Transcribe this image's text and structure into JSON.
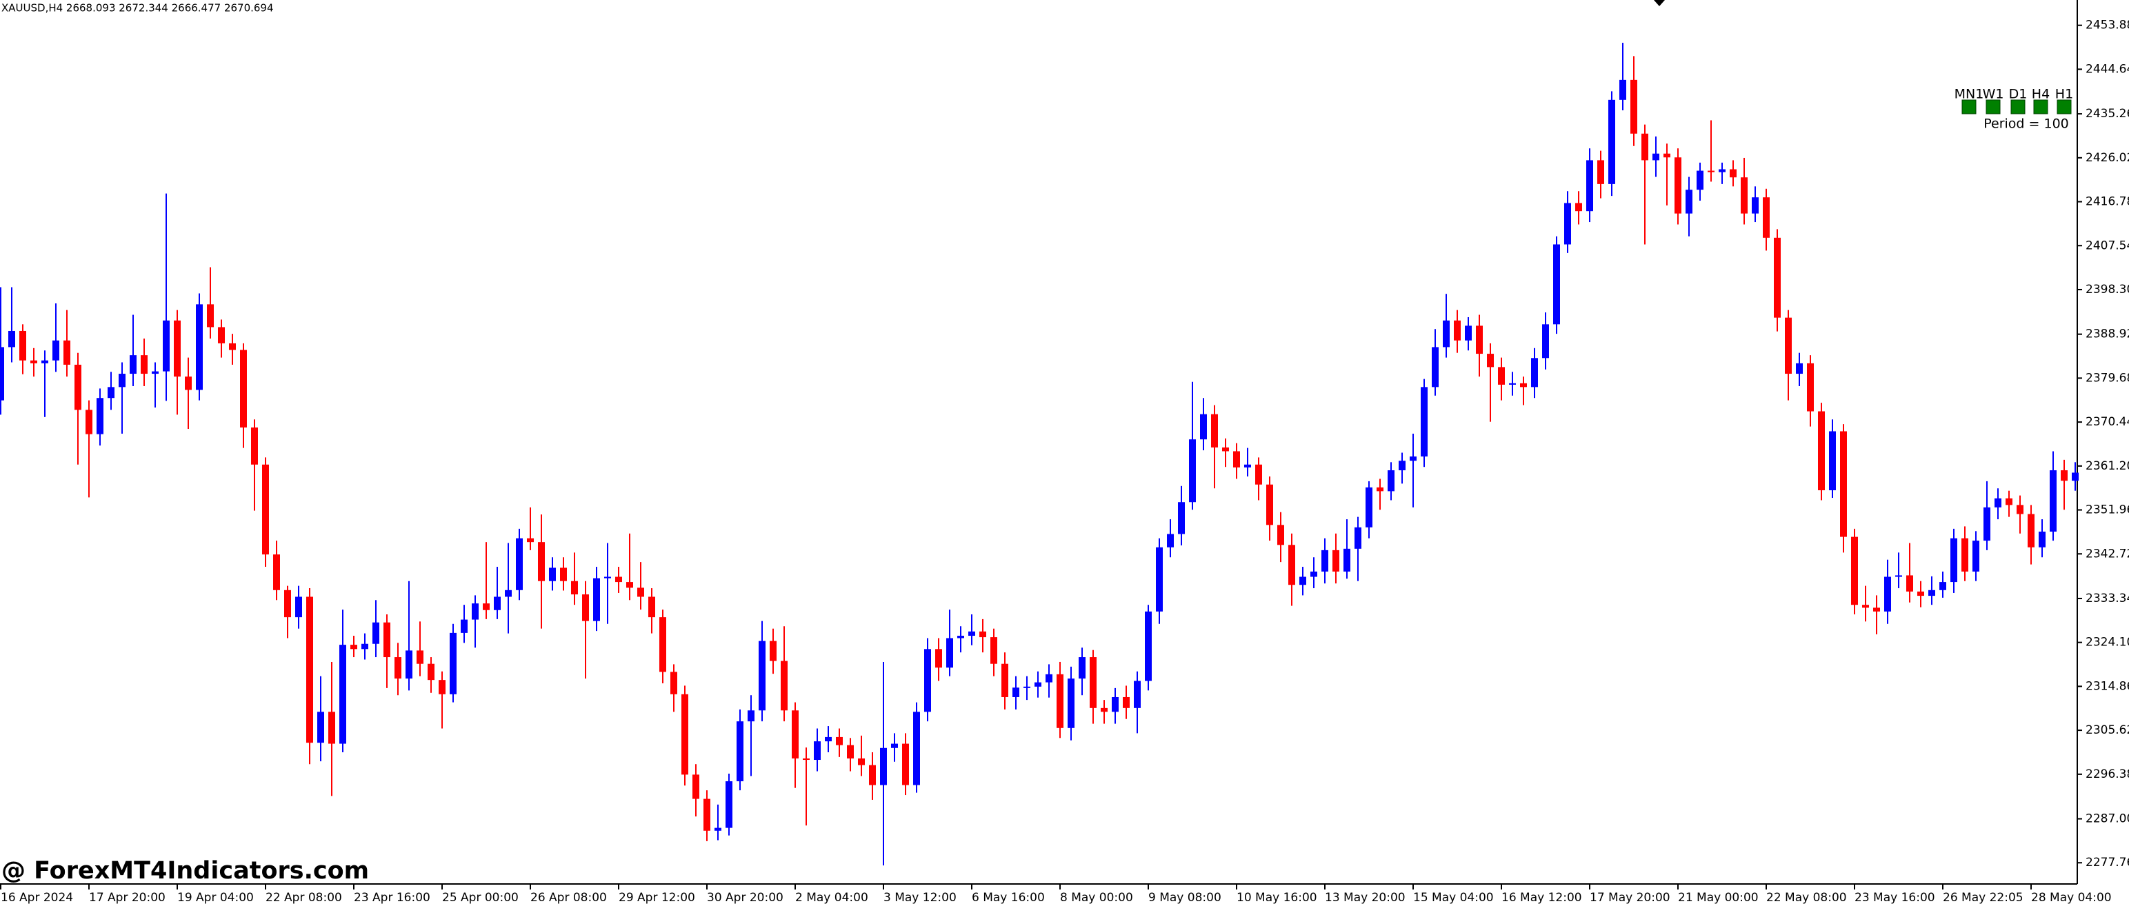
{
  "chart_data": {
    "type": "candlestick",
    "header": "XAUUSD,H4  2668.093 2672.344 2666.477 2670.694",
    "categories": [
      "16 Apr 2024",
      null,
      null,
      null,
      null,
      null,
      null,
      null,
      "17 Apr 20:00",
      null,
      null,
      null,
      null,
      null,
      null,
      null,
      "19 Apr 04:00",
      null,
      null,
      null,
      null,
      null,
      null,
      null,
      "22 Apr 08:00",
      null,
      null,
      null,
      null,
      null,
      null,
      null,
      "23 Apr 16:00",
      null,
      null,
      null,
      null,
      null,
      null,
      null,
      "25 Apr 00:00",
      null,
      null,
      null,
      null,
      null,
      null,
      null,
      "26 Apr 08:00",
      null,
      null,
      null,
      null,
      null,
      null,
      null,
      "29 Apr 12:00",
      null,
      null,
      null,
      null,
      null,
      null,
      null,
      "30 Apr 20:00",
      null,
      null,
      null,
      null,
      null,
      null,
      null,
      "2 May 04:00",
      null,
      null,
      null,
      null,
      null,
      null,
      null,
      "3 May 12:00",
      null,
      null,
      null,
      null,
      null,
      null,
      null,
      "6 May 16:00",
      null,
      null,
      null,
      null,
      null,
      null,
      null,
      "8 May 00:00",
      null,
      null,
      null,
      null,
      null,
      null,
      null,
      "9 May 08:00",
      null,
      null,
      null,
      null,
      null,
      null,
      null,
      "10 May 16:00",
      null,
      null,
      null,
      null,
      null,
      null,
      null,
      "13 May 20:00",
      null,
      null,
      null,
      null,
      null,
      null,
      null,
      "15 May 04:00",
      null,
      null,
      null,
      null,
      null,
      null,
      null,
      "16 May 12:00",
      null,
      null,
      null,
      null,
      null,
      null,
      null,
      "17 May 20:00",
      null,
      null,
      null,
      null,
      null,
      null,
      null,
      "21 May 00:00",
      null,
      null,
      null,
      null,
      null,
      null,
      null,
      "22 May 08:00",
      null,
      null,
      null,
      null,
      null,
      null,
      null,
      "23 May 16:00",
      null,
      null,
      null,
      null,
      null,
      null,
      null,
      "26 May 22:05",
      null,
      null,
      null,
      null,
      null,
      null,
      null,
      "28 May 04:00",
      null,
      null,
      null,
      null
    ],
    "open": [
      2375.0,
      2386.2,
      2389.6,
      2383.4,
      2382.8,
      2383.4,
      2387.6,
      2382.5,
      2373.0,
      2367.9,
      2375.5,
      2377.8,
      2380.6,
      2384.5,
      2380.6,
      2381.1,
      2391.8,
      2380.0,
      2377.2,
      2395.2,
      2390.4,
      2387.0,
      2385.6,
      2369.3,
      2361.5,
      2342.6,
      2335.1,
      2329.4,
      2333.7,
      2303.0,
      2309.5,
      2302.8,
      2323.6,
      2322.7,
      2323.8,
      2328.3,
      2321.0,
      2316.5,
      2322.4,
      2319.6,
      2316.2,
      2313.2,
      2326.1,
      2328.9,
      2332.3,
      2330.9,
      2333.7,
      2335.1,
      2346.0,
      2345.2,
      2337.0,
      2339.8,
      2337.0,
      2334.2,
      2328.6,
      2337.6,
      2337.9,
      2336.8,
      2335.6,
      2333.7,
      2329.4,
      2317.9,
      2313.2,
      2296.3,
      2291.2,
      2284.5,
      2285.1,
      2294.9,
      2307.5,
      2309.8,
      2324.4,
      2320.2,
      2309.8,
      2299.7,
      2299.4,
      2303.3,
      2304.2,
      2302.5,
      2299.7,
      2298.3,
      2294.1,
      2301.9,
      2302.8,
      2294.1,
      2309.5,
      2322.7,
      2318.8,
      2325.0,
      2325.5,
      2326.4,
      2325.2,
      2319.6,
      2312.6,
      2314.6,
      2314.8,
      2315.7,
      2317.4,
      2306.1,
      2316.5,
      2321.0,
      2310.3,
      2309.5,
      2312.6,
      2310.3,
      2316.0,
      2330.6,
      2344.1,
      2346.9,
      2353.6,
      2366.8,
      2372.1,
      2365.1,
      2364.3,
      2360.9,
      2361.5,
      2357.3,
      2348.8,
      2344.6,
      2336.2,
      2337.9,
      2339.0,
      2343.5,
      2339.0,
      2343.8,
      2348.3,
      2356.7,
      2355.9,
      2360.3,
      2362.3,
      2363.2,
      2377.8,
      2386.2,
      2391.8,
      2387.6,
      2390.7,
      2384.8,
      2382.0,
      2378.3,
      2378.6,
      2377.8,
      2383.9,
      2391.0,
      2407.8,
      2416.5,
      2414.8,
      2425.5,
      2420.5,
      2438.2,
      2442.4,
      2431.1,
      2425.5,
      2426.9,
      2426.1,
      2414.3,
      2419.3,
      2423.3,
      2423.0,
      2423.6,
      2421.9,
      2414.3,
      2417.7,
      2409.2,
      2392.4,
      2380.6,
      2382.8,
      2372.7,
      2356.1,
      2368.5,
      2346.3,
      2332.0,
      2331.4,
      2330.6,
      2337.9,
      2338.2,
      2334.8,
      2333.9,
      2335.1,
      2336.8,
      2346.0,
      2339.0,
      2345.5,
      2352.5,
      2354.4,
      2353.0,
      2351.1,
      2344.1,
      2347.4,
      2360.3,
      2358.1
    ],
    "high": [
      2398.8,
      2398.8,
      2391.0,
      2386.0,
      2385.5,
      2395.4,
      2394.0,
      2385.0,
      2375.0,
      2377.5,
      2381.0,
      2383.0,
      2393.0,
      2388.0,
      2383.0,
      2418.5,
      2394.0,
      2384.0,
      2397.5,
      2403.0,
      2392.0,
      2389.0,
      2387.0,
      2371.0,
      2363.0,
      2345.5,
      2336.0,
      2336.0,
      2335.5,
      2317.0,
      2320.0,
      2331.0,
      2325.5,
      2326.0,
      2333.0,
      2330.0,
      2324.0,
      2337.0,
      2328.5,
      2321.0,
      2318.0,
      2328.0,
      2332.0,
      2334.0,
      2345.2,
      2340.0,
      2345.0,
      2348.0,
      2352.5,
      2351.0,
      2342.0,
      2342.0,
      2343.0,
      2337.0,
      2340.0,
      2345.0,
      2340.0,
      2347.0,
      2341.0,
      2335.5,
      2331.0,
      2319.5,
      2315.0,
      2298.5,
      2293.0,
      2290.0,
      2296.5,
      2310.0,
      2313.0,
      2328.6,
      2327.0,
      2327.5,
      2311.5,
      2302.0,
      2306.0,
      2306.5,
      2306.0,
      2304.0,
      2304.5,
      2301.0,
      2320.0,
      2305.0,
      2305.0,
      2311.5,
      2325.0,
      2325.0,
      2331.0,
      2327.5,
      2330.0,
      2329.0,
      2327.0,
      2322.0,
      2317.0,
      2317.0,
      2318.0,
      2319.5,
      2320.0,
      2319.0,
      2323.0,
      2322.5,
      2312.0,
      2314.5,
      2315.0,
      2318.0,
      2332.0,
      2346.0,
      2350.0,
      2357.0,
      2378.9,
      2375.5,
      2374.0,
      2367.0,
      2366.0,
      2365.0,
      2363.0,
      2359.0,
      2351.5,
      2347.0,
      2340.0,
      2342.0,
      2346.0,
      2347.0,
      2350.0,
      2350.5,
      2358.0,
      2358.5,
      2362.0,
      2364.0,
      2368.0,
      2379.5,
      2390.0,
      2397.4,
      2394.0,
      2392.5,
      2393.0,
      2387.0,
      2384.0,
      2381.0,
      2380.0,
      2386.0,
      2393.5,
      2409.5,
      2419.0,
      2419.0,
      2428.0,
      2427.5,
      2440.0,
      2450.2,
      2447.4,
      2433.0,
      2430.5,
      2429.0,
      2428.0,
      2422.0,
      2425.0,
      2433.9,
      2425.0,
      2425.5,
      2426.0,
      2420.0,
      2419.5,
      2411.0,
      2394.0,
      2385.0,
      2384.5,
      2374.5,
      2371.0,
      2370.0,
      2348.0,
      2336.0,
      2334.0,
      2341.5,
      2343.0,
      2345.0,
      2337.0,
      2338.0,
      2339.0,
      2348.0,
      2348.5,
      2347.5,
      2358.0,
      2356.5,
      2356.0,
      2355.0,
      2353.0,
      2350.0,
      2364.3,
      2362.5,
      2362.0
    ],
    "low": [
      2372.0,
      2383.0,
      2380.5,
      2380.0,
      2371.5,
      2381.0,
      2380.0,
      2361.5,
      2354.6,
      2365.5,
      2373.0,
      2368.0,
      2378.0,
      2378.0,
      2373.5,
      2374.9,
      2372.0,
      2369.0,
      2375.0,
      2388.0,
      2384.0,
      2382.5,
      2365.0,
      2351.8,
      2340.0,
      2333.0,
      2325.0,
      2327.0,
      2298.5,
      2299.1,
      2291.8,
      2301.0,
      2321.0,
      2320.5,
      2321.0,
      2314.5,
      2313.0,
      2314.0,
      2317.0,
      2313.5,
      2306.0,
      2311.5,
      2324.0,
      2323.0,
      2329.0,
      2329.0,
      2326.0,
      2333.0,
      2343.5,
      2327.0,
      2335.0,
      2335.0,
      2332.0,
      2316.5,
      2326.5,
      2328.0,
      2334.5,
      2333.0,
      2331.0,
      2326.0,
      2315.5,
      2309.5,
      2294.0,
      2287.5,
      2282.3,
      2282.5,
      2283.5,
      2293.0,
      2296.0,
      2307.5,
      2317.5,
      2307.5,
      2293.5,
      2285.6,
      2297.0,
      2301.0,
      2300.0,
      2297.0,
      2296.0,
      2291.0,
      2277.2,
      2299.0,
      2292.0,
      2292.5,
      2307.5,
      2316.0,
      2317.0,
      2322.0,
      2323.5,
      2322.0,
      2317.0,
      2310.0,
      2310.0,
      2312.0,
      2312.5,
      2312.5,
      2304.0,
      2303.5,
      2313.0,
      2307.0,
      2307.0,
      2307.0,
      2308.0,
      2305.0,
      2314.0,
      2328.0,
      2342.0,
      2344.5,
      2352.0,
      2364.5,
      2356.5,
      2361.0,
      2358.5,
      2359.0,
      2354.0,
      2345.5,
      2341.0,
      2331.8,
      2334.0,
      2335.5,
      2336.5,
      2336.5,
      2337.5,
      2337.0,
      2346.0,
      2352.0,
      2354.0,
      2357.5,
      2352.5,
      2361.0,
      2376.0,
      2384.0,
      2385.0,
      2385.5,
      2380.0,
      2370.5,
      2375.0,
      2376.0,
      2374.0,
      2375.5,
      2381.5,
      2389.0,
      2406.0,
      2412.0,
      2412.5,
      2417.5,
      2418.0,
      2436.0,
      2428.5,
      2407.8,
      2422.0,
      2416.0,
      2412.0,
      2409.5,
      2417.0,
      2421.0,
      2420.5,
      2420.0,
      2412.0,
      2412.5,
      2406.5,
      2389.5,
      2375.0,
      2378.0,
      2369.5,
      2354.0,
      2354.5,
      2343.0,
      2330.0,
      2328.5,
      2325.8,
      2328.0,
      2335.5,
      2332.5,
      2331.5,
      2332.0,
      2333.5,
      2334.5,
      2337.0,
      2337.0,
      2343.5,
      2350.0,
      2350.5,
      2347.0,
      2340.5,
      2342.0,
      2345.5,
      2352.0,
      2356.0
    ],
    "close": [
      2386.2,
      2389.6,
      2383.4,
      2382.8,
      2383.4,
      2387.6,
      2382.5,
      2373.0,
      2367.9,
      2375.5,
      2377.8,
      2380.6,
      2384.5,
      2380.6,
      2381.1,
      2391.8,
      2380.0,
      2377.2,
      2395.2,
      2390.4,
      2387.0,
      2385.6,
      2369.3,
      2361.5,
      2342.6,
      2335.1,
      2329.4,
      2333.7,
      2303.0,
      2309.5,
      2302.8,
      2323.6,
      2322.7,
      2323.8,
      2328.3,
      2321.0,
      2316.5,
      2322.4,
      2319.6,
      2316.2,
      2313.2,
      2326.1,
      2328.9,
      2332.3,
      2330.9,
      2333.7,
      2335.1,
      2346.0,
      2345.2,
      2337.0,
      2339.8,
      2337.0,
      2334.2,
      2328.6,
      2337.6,
      2337.9,
      2336.8,
      2335.6,
      2333.7,
      2329.4,
      2317.9,
      2313.2,
      2296.3,
      2291.2,
      2284.5,
      2285.1,
      2294.9,
      2307.5,
      2309.8,
      2324.4,
      2320.2,
      2309.8,
      2299.7,
      2299.4,
      2303.3,
      2304.2,
      2302.5,
      2299.7,
      2298.3,
      2294.1,
      2301.9,
      2302.8,
      2294.1,
      2309.5,
      2322.7,
      2318.8,
      2325.0,
      2325.5,
      2326.4,
      2325.2,
      2319.6,
      2312.6,
      2314.6,
      2314.8,
      2315.7,
      2317.4,
      2306.1,
      2316.5,
      2321.0,
      2310.3,
      2309.5,
      2312.6,
      2310.3,
      2316.0,
      2330.6,
      2344.1,
      2346.9,
      2353.6,
      2366.8,
      2372.1,
      2365.1,
      2364.3,
      2360.9,
      2361.5,
      2357.3,
      2348.8,
      2344.6,
      2336.2,
      2337.9,
      2339.0,
      2343.5,
      2339.0,
      2343.8,
      2348.3,
      2356.7,
      2355.9,
      2360.3,
      2362.3,
      2363.2,
      2377.8,
      2386.2,
      2391.8,
      2387.6,
      2390.7,
      2384.8,
      2382.0,
      2378.3,
      2378.6,
      2377.8,
      2383.9,
      2391.0,
      2407.8,
      2416.5,
      2414.8,
      2425.5,
      2420.5,
      2438.2,
      2442.4,
      2431.1,
      2425.5,
      2426.9,
      2426.1,
      2414.3,
      2419.3,
      2423.3,
      2423.0,
      2423.6,
      2421.9,
      2414.3,
      2417.7,
      2409.2,
      2392.4,
      2380.6,
      2382.8,
      2372.7,
      2356.1,
      2368.5,
      2346.3,
      2332.0,
      2331.4,
      2330.6,
      2337.9,
      2338.2,
      2334.8,
      2333.9,
      2335.1,
      2336.8,
      2346.0,
      2339.0,
      2345.5,
      2352.5,
      2354.4,
      2353.0,
      2351.1,
      2344.1,
      2347.4,
      2360.3,
      2358.1,
      2359.8
    ],
    "up_color": "#0000ff",
    "down_color": "#ff0000",
    "ylim": [
      2273.3,
      2459.2
    ],
    "yticks": [
      {
        "value": 2453.88,
        "label": "2453.880"
      },
      {
        "value": 2444.64,
        "label": "2444.640"
      },
      {
        "value": 2435.26,
        "label": "2435.260"
      },
      {
        "value": 2426.02,
        "label": "2426.020"
      },
      {
        "value": 2416.78,
        "label": "2416.780"
      },
      {
        "value": 2407.54,
        "label": "2407.540"
      },
      {
        "value": 2398.3,
        "label": "2398.300"
      },
      {
        "value": 2388.92,
        "label": "2388.920"
      },
      {
        "value": 2379.68,
        "label": "2379.680"
      },
      {
        "value": 2370.44,
        "label": "2370.440"
      },
      {
        "value": 2361.2,
        "label": "2361.200"
      },
      {
        "value": 2351.96,
        "label": "2351.960"
      },
      {
        "value": 2342.72,
        "label": "2342.720"
      },
      {
        "value": 2333.34,
        "label": "2333.340"
      },
      {
        "value": 2324.1,
        "label": "2324.100"
      },
      {
        "value": 2314.86,
        "label": "2314.860"
      },
      {
        "value": 2305.62,
        "label": "2305.620"
      },
      {
        "value": 2296.38,
        "label": "2296.380"
      },
      {
        "value": 2287,
        "label": "2287.000"
      },
      {
        "value": 2277.76,
        "label": "2277.760"
      }
    ]
  },
  "indicator": {
    "timeframes": [
      "MN1",
      "W1",
      "D1",
      "H4",
      "H1"
    ],
    "color": "#008000",
    "period_label": "Period = 100"
  },
  "watermark": "@ ForexMT4Indicators.com"
}
